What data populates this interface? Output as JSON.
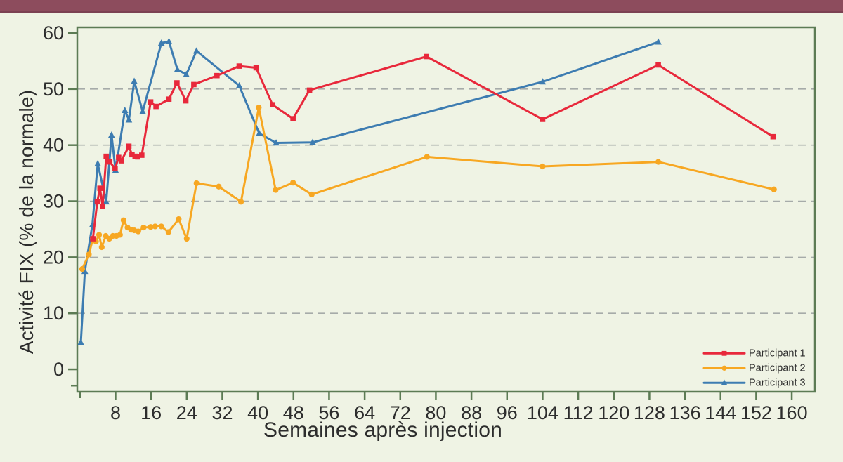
{
  "colors": {
    "background": "#eff3e4",
    "topbar": "#8d4c5d",
    "topbar_edge": "#7b4152",
    "frame": "#5c7b54",
    "grid": "#a6aba9",
    "text": "#2d2d2d"
  },
  "chart_data": {
    "type": "line",
    "title": "",
    "xlabel": "Semaines après injection",
    "ylabel": "Activité FIX (% de la normale)",
    "x_ticks": [
      8,
      16,
      24,
      32,
      40,
      48,
      56,
      64,
      72,
      80,
      88,
      96,
      104,
      112,
      120,
      128,
      136,
      144,
      152,
      160
    ],
    "y_ticks": [
      0,
      10,
      20,
      30,
      40,
      50,
      60
    ],
    "y_gridlines": [
      10,
      20,
      30,
      40,
      50
    ],
    "y_minor_ticks": [
      -2.9
    ],
    "x_minor_ticks": [
      0
    ],
    "x_range": [
      -0.6,
      165.2
    ],
    "y_range": [
      -4,
      61
    ],
    "grid": "dashed",
    "legend_position": "bottom-right-inside",
    "series": [
      {
        "name": "Participant 1",
        "color": "#e8283b",
        "marker": "square",
        "points": [
          [
            2.9,
            23.3
          ],
          [
            3.9,
            29.9
          ],
          [
            4.5,
            32.3
          ],
          [
            5.1,
            29.1
          ],
          [
            5.9,
            38
          ],
          [
            6.7,
            37
          ],
          [
            7.9,
            35.8
          ],
          [
            8.7,
            37.8
          ],
          [
            9.3,
            37.2
          ],
          [
            11,
            39.8
          ],
          [
            11.7,
            38.3
          ],
          [
            12.4,
            38
          ],
          [
            13,
            37.9
          ],
          [
            13.9,
            38.2
          ],
          [
            15.9,
            47.7
          ],
          [
            17.1,
            46.9
          ],
          [
            20,
            48.2
          ],
          [
            21.8,
            51.1
          ],
          [
            23.8,
            47.9
          ],
          [
            25.6,
            50.8
          ],
          [
            30.8,
            52.4
          ],
          [
            35.8,
            54.1
          ],
          [
            39.6,
            53.8
          ],
          [
            43.3,
            47.2
          ],
          [
            47.9,
            44.7
          ],
          [
            51.6,
            49.8
          ],
          [
            77.9,
            55.8
          ],
          [
            104,
            44.6
          ],
          [
            130,
            54.3
          ],
          [
            155.8,
            41.5
          ]
        ]
      },
      {
        "name": "Participant 2",
        "color": "#f7a722",
        "marker": "circle",
        "points": [
          [
            0.5,
            17.9
          ],
          [
            2,
            20.5
          ],
          [
            2.9,
            23.3
          ],
          [
            3.6,
            22.8
          ],
          [
            4.3,
            24
          ],
          [
            4.9,
            21.8
          ],
          [
            5.8,
            23.8
          ],
          [
            6.6,
            23.3
          ],
          [
            7.4,
            23.8
          ],
          [
            8.2,
            23.8
          ],
          [
            9,
            24
          ],
          [
            9.8,
            26.6
          ],
          [
            10.7,
            25.3
          ],
          [
            11.5,
            24.9
          ],
          [
            12.2,
            24.8
          ],
          [
            13.1,
            24.6
          ],
          [
            14.3,
            25.3
          ],
          [
            15.9,
            25.4
          ],
          [
            16.9,
            25.5
          ],
          [
            18.3,
            25.5
          ],
          [
            19.9,
            24.5
          ],
          [
            22.2,
            26.8
          ],
          [
            24,
            23.3
          ],
          [
            26.2,
            33.2
          ],
          [
            31.2,
            32.6
          ],
          [
            36.2,
            29.9
          ],
          [
            40.2,
            46.7
          ],
          [
            44,
            32
          ],
          [
            47.9,
            33.3
          ],
          [
            52.1,
            31.2
          ],
          [
            78,
            37.9
          ],
          [
            104,
            36.2
          ],
          [
            130,
            37
          ],
          [
            156,
            32.1
          ]
        ]
      },
      {
        "name": "Participant 3",
        "color": "#3d7cb1",
        "marker": "triangle",
        "points": [
          [
            0.2,
            4.8
          ],
          [
            1.1,
            17.5
          ],
          [
            2.8,
            25.8
          ],
          [
            4,
            36.7
          ],
          [
            5.9,
            29.9
          ],
          [
            7.1,
            41.8
          ],
          [
            8,
            35.5
          ],
          [
            10.1,
            46.2
          ],
          [
            11,
            44.5
          ],
          [
            12.2,
            51.4
          ],
          [
            14.1,
            46
          ],
          [
            18.3,
            58.2
          ],
          [
            20,
            58.5
          ],
          [
            21.9,
            53.5
          ],
          [
            23.9,
            52.6
          ],
          [
            26.2,
            56.8
          ],
          [
            35.8,
            50.6
          ],
          [
            40.3,
            42.1
          ],
          [
            44.1,
            40.4
          ],
          [
            52.3,
            40.5
          ],
          [
            104,
            51.3
          ],
          [
            130,
            58.4
          ]
        ]
      }
    ]
  }
}
